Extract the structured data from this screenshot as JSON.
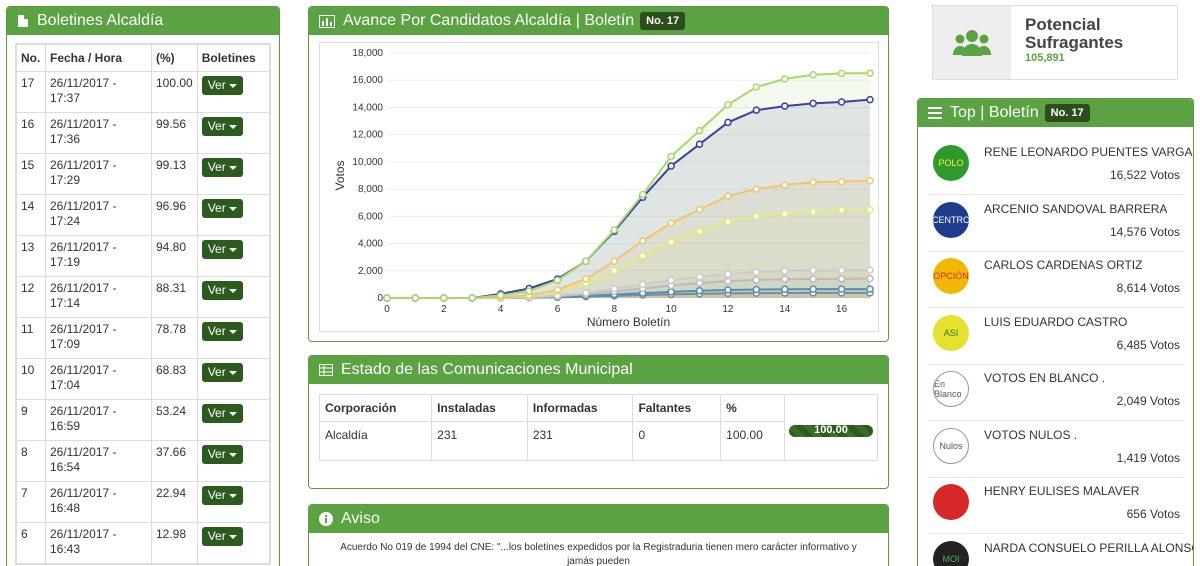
{
  "boletines": {
    "title": "Boletines Alcaldía",
    "headers": [
      "No.",
      "Fecha / Hora",
      "(%)",
      "Boletines"
    ],
    "ver_label": "Ver",
    "rows": [
      {
        "no": "17",
        "date": "26/11/2017 -",
        "time": "17:37",
        "pct": "100.00"
      },
      {
        "no": "16",
        "date": "26/11/2017 -",
        "time": "17:36",
        "pct": "99.56"
      },
      {
        "no": "15",
        "date": "26/11/2017 -",
        "time": "17:29",
        "pct": "99.13"
      },
      {
        "no": "14",
        "date": "26/11/2017 -",
        "time": "17:24",
        "pct": "96.96"
      },
      {
        "no": "13",
        "date": "26/11/2017 -",
        "time": "17:19",
        "pct": "94.80"
      },
      {
        "no": "12",
        "date": "26/11/2017 -",
        "time": "17:14",
        "pct": "88.31"
      },
      {
        "no": "11",
        "date": "26/11/2017 -",
        "time": "17:09",
        "pct": "78.78"
      },
      {
        "no": "10",
        "date": "26/11/2017 -",
        "time": "17:04",
        "pct": "68.83"
      },
      {
        "no": "9",
        "date": "26/11/2017 -",
        "time": "16:59",
        "pct": "53.24"
      },
      {
        "no": "8",
        "date": "26/11/2017 -",
        "time": "16:54",
        "pct": "37.66"
      },
      {
        "no": "7",
        "date": "26/11/2017 -",
        "time": "16:48",
        "pct": "22.94"
      },
      {
        "no": "6",
        "date": "26/11/2017 -",
        "time": "16:43",
        "pct": "12.98"
      }
    ]
  },
  "chart_panel": {
    "title": "Avance Por Candidatos Alcaldía | Boletín",
    "badge": "No. 17"
  },
  "chart_data": {
    "type": "line",
    "title": "Avance Por Candidatos Alcaldía | Boletín No. 17",
    "xlabel": "Número Boletín",
    "ylabel": "Votos",
    "xlim": [
      0,
      17
    ],
    "ylim": [
      0,
      18000
    ],
    "xticks": [
      "0",
      "2",
      "4",
      "6",
      "8",
      "10",
      "12",
      "14",
      "16"
    ],
    "yticks": [
      "0",
      "2,000",
      "4,000",
      "6,000",
      "8,000",
      "10,000",
      "12,000",
      "14,000",
      "16,000",
      "18,000"
    ],
    "x": [
      0,
      1,
      2,
      3,
      4,
      5,
      6,
      7,
      8,
      9,
      10,
      11,
      12,
      13,
      14,
      15,
      16,
      17
    ],
    "series": [
      {
        "name": "RENE LEONARDO PUENTES VARGAS",
        "color": "#a6d96a",
        "values": [
          0,
          0,
          0,
          0,
          200,
          500,
          1300,
          2700,
          5000,
          7600,
          10400,
          12300,
          14200,
          15500,
          16100,
          16400,
          16500,
          16522
        ]
      },
      {
        "name": "ARCENIO SANDOVAL BARRERA",
        "color": "#3b3fa0",
        "values": [
          0,
          0,
          0,
          0,
          300,
          700,
          1400,
          2700,
          4900,
          7400,
          9700,
          11300,
          12900,
          13800,
          14100,
          14300,
          14400,
          14576
        ]
      },
      {
        "name": "CARLOS CARDENAS ORTIZ",
        "color": "#f2c46d",
        "values": [
          0,
          0,
          0,
          0,
          50,
          200,
          600,
          1400,
          2700,
          4200,
          5500,
          6500,
          7500,
          8000,
          8300,
          8500,
          8550,
          8614
        ]
      },
      {
        "name": "LUIS EDUARDO CASTRO",
        "color": "#e6e87a",
        "values": [
          0,
          0,
          0,
          0,
          40,
          150,
          500,
          1100,
          2000,
          3100,
          4100,
          4900,
          5600,
          6000,
          6200,
          6350,
          6450,
          6485
        ]
      },
      {
        "name": "VOTOS EN BLANCO .",
        "color": "#cccccc",
        "values": [
          0,
          0,
          0,
          0,
          10,
          60,
          180,
          380,
          680,
          1000,
          1300,
          1550,
          1750,
          1900,
          1980,
          2020,
          2040,
          2049
        ]
      },
      {
        "name": "VOTOS NULOS .",
        "color": "#bbbbbb",
        "values": [
          0,
          0,
          0,
          0,
          10,
          40,
          130,
          280,
          480,
          700,
          920,
          1100,
          1240,
          1330,
          1380,
          1400,
          1410,
          1419
        ]
      },
      {
        "name": "HENRY EULISES MALAVER",
        "color": "#4a90c0",
        "values": [
          0,
          0,
          0,
          0,
          5,
          30,
          80,
          160,
          260,
          360,
          450,
          530,
          590,
          620,
          640,
          650,
          654,
          656
        ]
      },
      {
        "name": "NARDA CONSUELO PERILLA ALONSO",
        "color": "#888888",
        "values": [
          0,
          0,
          0,
          0,
          5,
          20,
          50,
          100,
          160,
          220,
          270,
          310,
          340,
          360,
          370,
          375,
          378,
          380
        ]
      }
    ]
  },
  "comms": {
    "title": "Estado de las Comunicaciones Municipal",
    "headers": [
      "Corporación",
      "Instaladas",
      "Informadas",
      "Faltantes",
      "%"
    ],
    "row": {
      "corporacion": "Alcaldía",
      "instaladas": "231",
      "informadas": "231",
      "faltantes": "0",
      "pct": "100.00",
      "bar_label": "100.00"
    },
    "progress_pct": 100
  },
  "aviso": {
    "title": "Aviso",
    "text": "Acuerdo No 019 de 1994 del CNE: \"...los boletines expedidos por la Registraduria tienen mero carácter informativo y jamás pueden"
  },
  "potencial": {
    "label_line1": "Potencial",
    "label_line2": "Sufragantes",
    "value": "105,891"
  },
  "top": {
    "title": "Top | Boletín",
    "badge": "No. 17",
    "candidates": [
      {
        "name": "RENE LEONARDO PUENTES VARGAS",
        "votes": "16,522 Votos",
        "logo": "POLO",
        "logo_bg": "#2e9a2e",
        "logo_fg": "#ffeb3b"
      },
      {
        "name": "ARCENIO SANDOVAL BARRERA",
        "votes": "14,576 Votos",
        "logo": "CENTRO",
        "logo_bg": "#1f3c8c",
        "logo_fg": "#ffffff"
      },
      {
        "name": "CARLOS CARDENAS ORTIZ",
        "votes": "8,614 Votos",
        "logo": "OPCIÓN",
        "logo_bg": "#f2b705",
        "logo_fg": "#c0392b"
      },
      {
        "name": "LUIS EDUARDO CASTRO",
        "votes": "6,485 Votos",
        "logo": "ASI",
        "logo_bg": "#e6e030",
        "logo_fg": "#2e7d32"
      },
      {
        "name": "VOTOS EN BLANCO .",
        "votes": "2,049 Votos",
        "logo": "En Blanco",
        "logo_bg": "#ffffff",
        "logo_fg": "#555555"
      },
      {
        "name": "VOTOS NULOS .",
        "votes": "1,419 Votos",
        "logo": "Nulos",
        "logo_bg": "#ffffff",
        "logo_fg": "#555555"
      },
      {
        "name": "HENRY EULISES MALAVER",
        "votes": "656 Votos",
        "logo": "",
        "logo_bg": "#d62828",
        "logo_fg": "#ffffff"
      },
      {
        "name": "NARDA CONSUELO PERILLA ALONSO",
        "votes": "",
        "logo": "MOI",
        "logo_bg": "#222222",
        "logo_fg": "#4caf50"
      }
    ]
  }
}
